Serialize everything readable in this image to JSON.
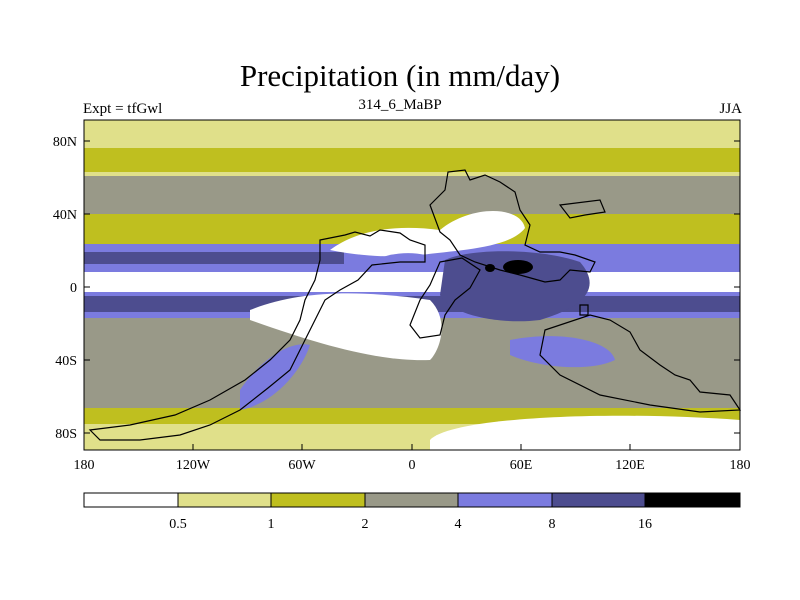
{
  "header": {
    "title": "Precipitation (in mm/day)",
    "experiment": "Expt = tfGwl",
    "case": "314_6_MaBP",
    "season": "JJA"
  },
  "axes": {
    "lat_labels": [
      "80N",
      "40N",
      "0",
      "40S",
      "80S"
    ],
    "lon_labels": [
      "180",
      "120W",
      "60W",
      "0",
      "60E",
      "120E",
      "180"
    ]
  },
  "colorbar": {
    "colors": [
      "#ffffff",
      "#e0e08a",
      "#bfbf1f",
      "#999988",
      "#7b7bdf",
      "#4d4d8f",
      "#000000"
    ],
    "labels": [
      "0.5",
      "1",
      "2",
      "4",
      "8",
      "16"
    ]
  },
  "chart_data": {
    "type": "heatmap",
    "title": "Precipitation (in mm/day)",
    "variable": "precipitation",
    "units": "mm/day",
    "levels": [
      0.5,
      1,
      2,
      4,
      8,
      16
    ],
    "xlim": [
      -180,
      180
    ],
    "ylim": [
      -90,
      90
    ],
    "bands": [
      {
        "lat_range": [
          60,
          90
        ],
        "value": 1.5
      },
      {
        "lat_range": [
          40,
          60
        ],
        "value": 3
      },
      {
        "lat_range": [
          20,
          40
        ],
        "value": 1.5
      },
      {
        "lat_range": [
          5,
          20
        ],
        "value": 6
      },
      {
        "lat_range": [
          0,
          5
        ],
        "value": 0.3
      },
      {
        "lat_range": [
          -15,
          0
        ],
        "value": 10
      },
      {
        "lat_range": [
          -40,
          -15
        ],
        "value": 5
      },
      {
        "lat_range": [
          -70,
          -40
        ],
        "value": 3
      },
      {
        "lat_range": [
          -80,
          -70
        ],
        "value": 1.5
      },
      {
        "lat_range": [
          -90,
          -80
        ],
        "value": 0.8
      }
    ]
  }
}
